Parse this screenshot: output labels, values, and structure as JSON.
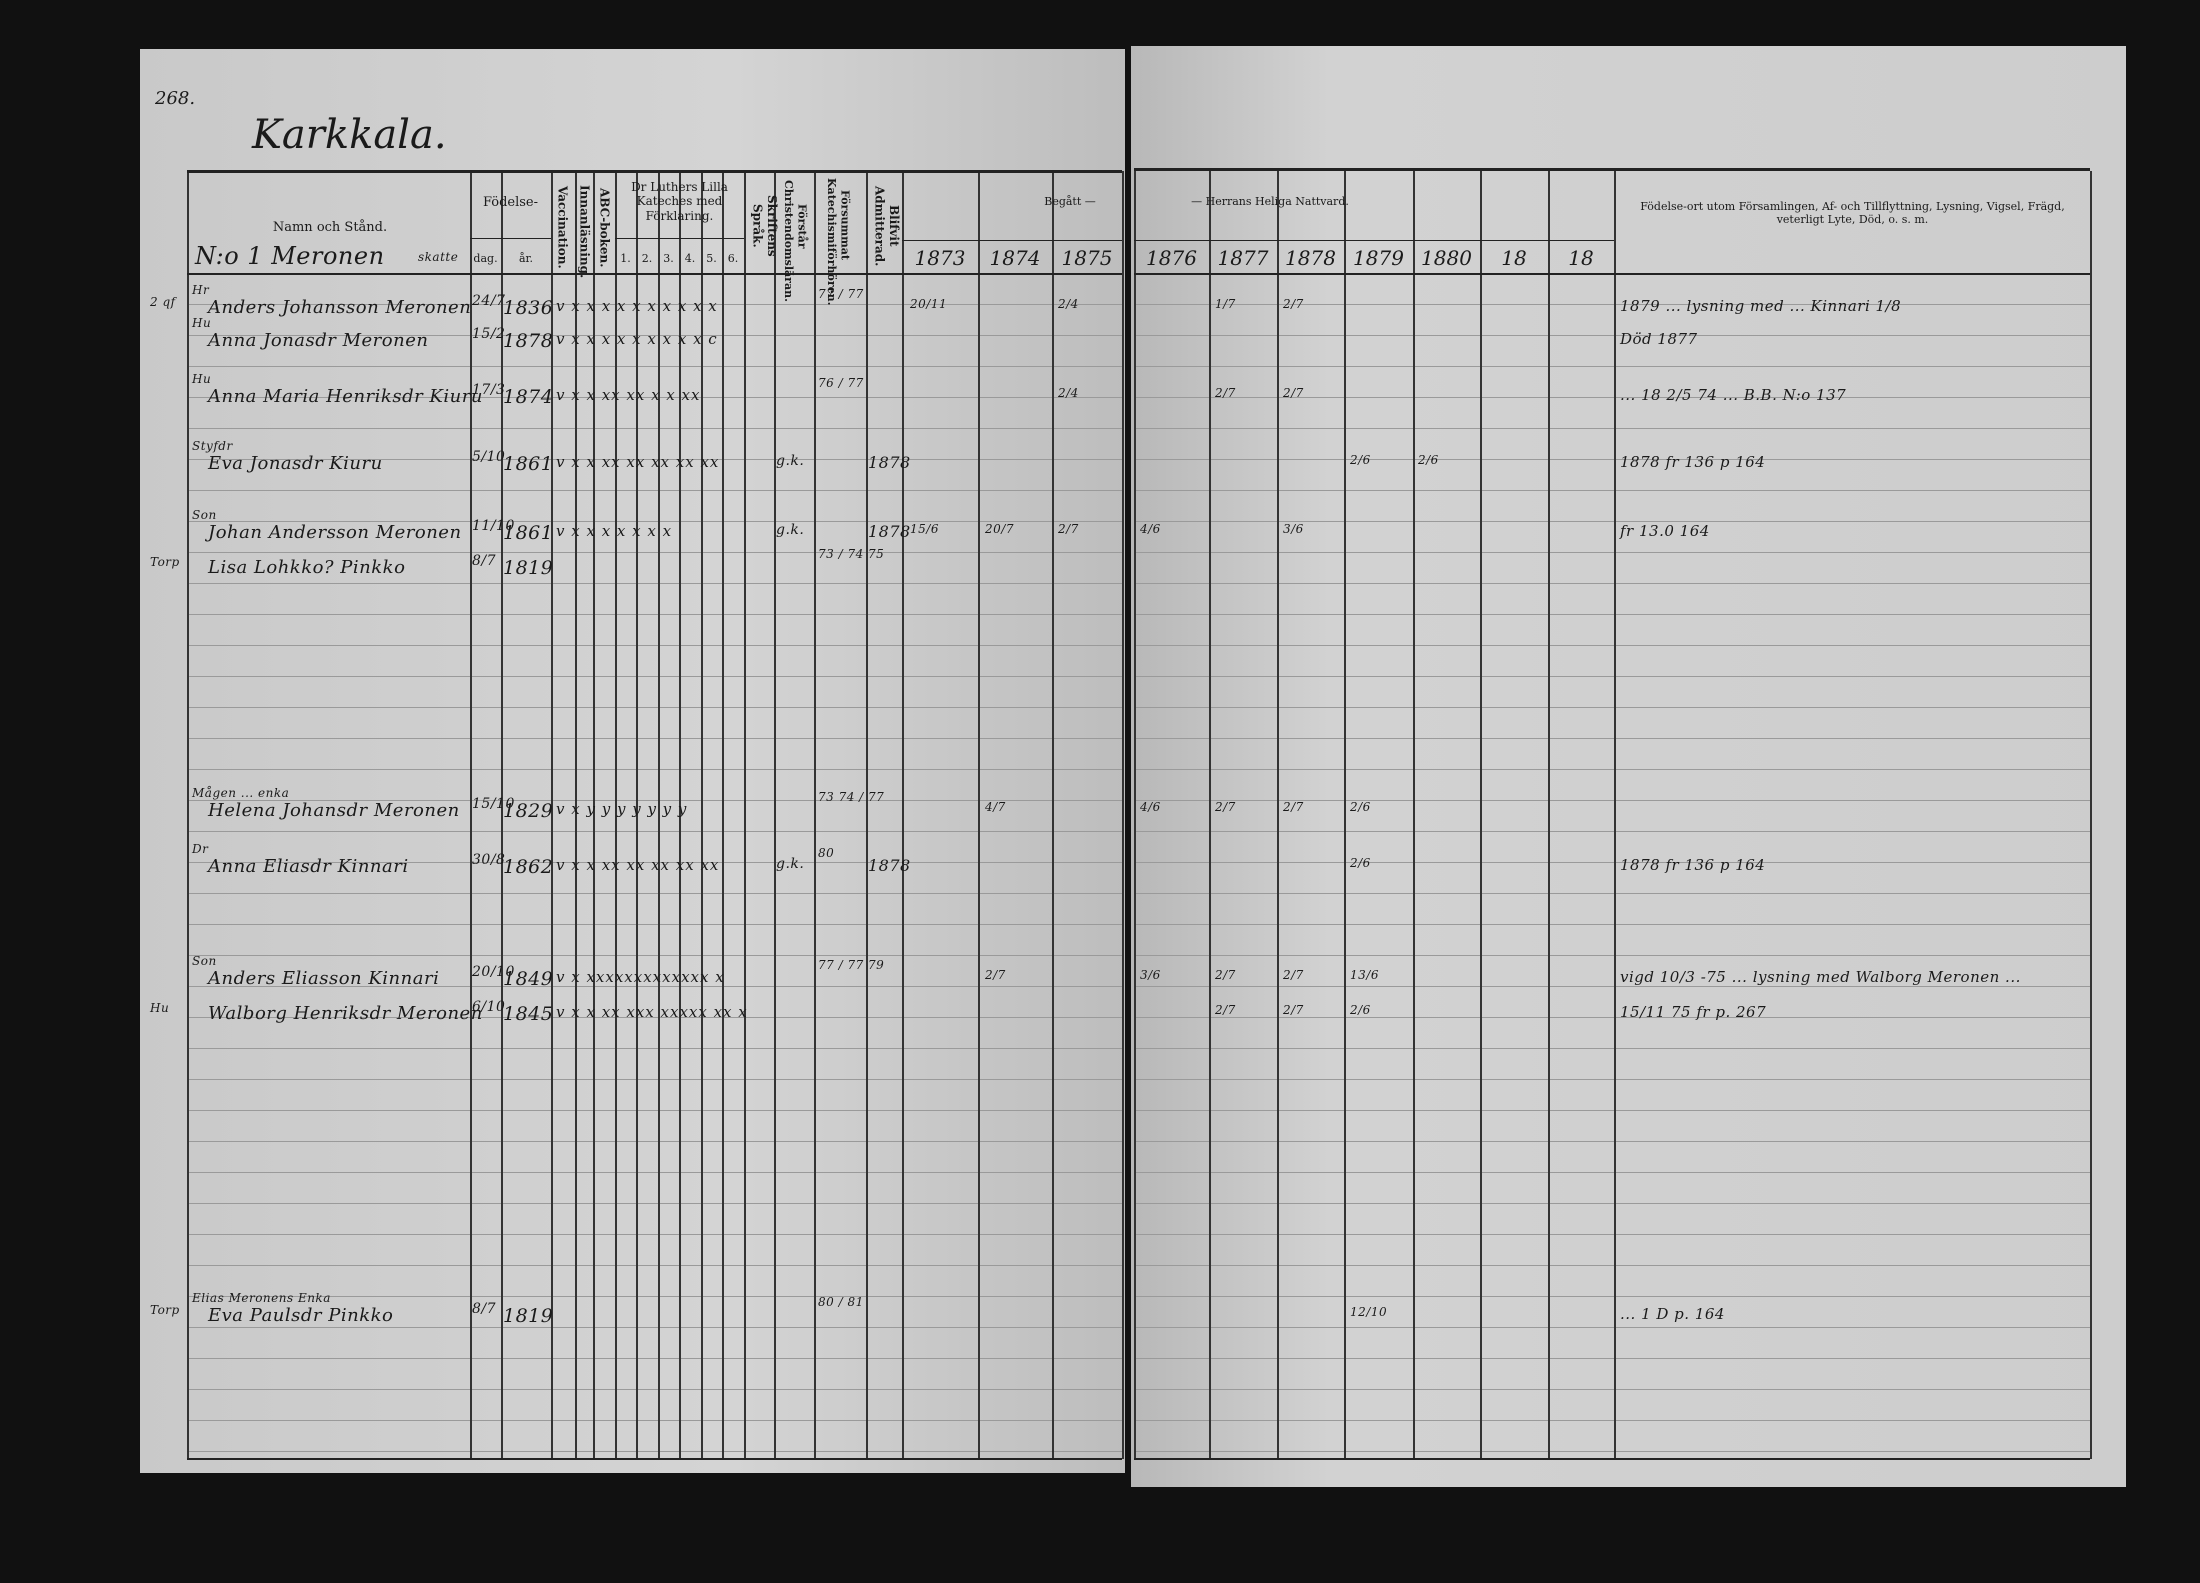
{
  "page_number": "268.",
  "village_title": "Karkkala.",
  "header": {
    "name_col": "Namn och Stånd.",
    "household": "N:o 1 Meronen",
    "household_status": "skatte",
    "birth": "Födelse-",
    "day": "dag.",
    "year": "år.",
    "vaccination": "Vaccination.",
    "reading": "Innanläsning.",
    "abc": "ABC-boken.",
    "catechism": "Dr Luthers Lilla Kateches med Förklaring.",
    "catechism_parts": [
      "1.",
      "2.",
      "3.",
      "4.",
      "5.",
      "6."
    ],
    "scripture": "Skriftens Språk.",
    "christianity": "Förstår Christendomsläran.",
    "missed": "Försummat Katechismiförhören.",
    "admitted": "Blifvit Admitterad.",
    "communion_left": "Begått —",
    "communion_right": "— Herrans Heliga Nattvard.",
    "years": [
      "1873",
      "1874",
      "1875",
      "1876",
      "1877",
      "1878",
      "1879",
      "1880",
      "18",
      "18"
    ],
    "remarks": "Födelse-ort utom Församlingen, Af- och Tillflyttning, Lysning, Vigsel, Frägd, veterligt Lyte, Död, o. s. m."
  },
  "entries": [
    {
      "margin": "2 qf",
      "role": "Hr",
      "name": "Anders Johansson Meronen",
      "day": "24/7",
      "year": "1836",
      "marks": "v  x  x x x x x x x x x",
      "missed": "77 / 77",
      "communion": [
        "20/11",
        "",
        "2/4",
        "",
        "1/7",
        "2/7"
      ],
      "remarks": "1879 ... lysning med ... Kinnari 1/8"
    },
    {
      "margin": "",
      "role": "Hu",
      "name": "Anna Jonasdr Meronen",
      "day": "15/2",
      "year": "1878",
      "marks": "v  x  x x x x x x x x c",
      "missed": "",
      "communion": [],
      "remarks": "Död 1877"
    },
    {
      "margin": "",
      "role": "Hu",
      "name": "Anna Maria Henriksdr Kiuru",
      "day": "17/3",
      "year": "1874",
      "marks": "v  x  x xx xx x x xx",
      "missed": "76 / 77",
      "communion": [
        "",
        "",
        "2/4",
        "",
        "2/7",
        "2/7"
      ],
      "remarks": "... 18 2/5 74 ... B.B. N:o 137"
    },
    {
      "margin": "",
      "role": "Styfdr",
      "name": "Eva Jonasdr Kiuru",
      "day": "5/10",
      "year": "1861",
      "marks": "v  x  x xx xx xx xx xx",
      "understands": "g.k.",
      "missed": "",
      "admitted": "1878",
      "communion": [
        "",
        "",
        "",
        "",
        "",
        "",
        "2/6",
        "2/6"
      ],
      "remarks": "1878 fr 136 p 164"
    },
    {
      "margin": "",
      "role": "Son",
      "name": "Johan Andersson Meronen",
      "day": "11/10",
      "year": "1861",
      "marks": "v  x  x x x x x x",
      "understands": "g.k.",
      "missed": "",
      "admitted": "1878",
      "communion": [
        "15/6",
        "20/7",
        "2/7",
        "4/6",
        "",
        "3/6"
      ],
      "remarks": "fr 13.0 164"
    },
    {
      "margin": "Torp",
      "role": "",
      "name": "Lisa Lohkko? Pinkko",
      "day": "8/7",
      "year": "1819",
      "marks": "",
      "missed": "73 / 74 75",
      "communion": [],
      "remarks": ""
    },
    {
      "margin": "",
      "role": "Mågen ... enka",
      "name": "Helena Johansdr Meronen",
      "day": "15/10",
      "year": "1829",
      "marks": "v  x  y y y y y y y",
      "missed": "73 74 / 77",
      "communion": [
        "",
        "4/7",
        "",
        "4/6",
        "2/7",
        "2/7",
        "2/6"
      ],
      "remarks": ""
    },
    {
      "margin": "",
      "role": "Dr",
      "name": "Anna Eliasdr Kinnari",
      "day": "30/8",
      "year": "1862",
      "marks": "v  x  x xx xx xx xx xx",
      "understands": "g.k.",
      "missed": "80",
      "admitted": "1878",
      "communion": [
        "",
        "",
        "",
        "",
        "",
        "",
        "2/6"
      ],
      "remarks": "1878 fr 136 p 164"
    },
    {
      "margin": "",
      "role": "Son",
      "name": "Anders Eliasson Kinnari",
      "day": "20/10",
      "year": "1849",
      "marks": "v  x  xxxxxxxxxxxxx  x",
      "missed": "77 / 77 79",
      "communion": [
        "",
        "2/7",
        "",
        "3/6",
        "2/7",
        "2/7",
        "13/6"
      ],
      "remarks": "vigd 10/3 -75 ... lysning med Walborg Meronen ..."
    },
    {
      "margin": "Hu",
      "role": "",
      "name": "Walborg Henriksdr Meronen",
      "day": "6/10",
      "year": "1845",
      "marks": "v  x  x xx xxx xxxxx xx x",
      "missed": "",
      "communion": [
        "",
        "",
        "",
        "",
        "2/7",
        "2/7",
        "2/6"
      ],
      "remarks": "15/11 75 fr p. 267"
    },
    {
      "margin": "Torp",
      "role": "Elias Meronens Enka",
      "name": "Eva Paulsdr Pinkko",
      "day": "8/7",
      "year": "1819",
      "marks": "",
      "missed": "80 / 81",
      "communion": [
        "",
        "",
        "",
        "",
        "",
        "",
        "12/10"
      ],
      "remarks": "... 1 D p. 164"
    }
  ]
}
